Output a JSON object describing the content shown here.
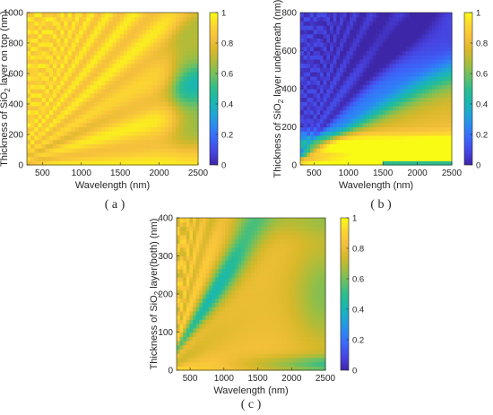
{
  "figure": {
    "colorscale": [
      "#3e26a8",
      "#4743e0",
      "#3c64f8",
      "#2d86f5",
      "#1fa6d5",
      "#19b7b0",
      "#2ebd8c",
      "#6ac064",
      "#a6bd3d",
      "#d8b82a",
      "#f6c13c",
      "#fcd631",
      "#f9fb15"
    ]
  },
  "chart_data": [
    {
      "type": "heatmap",
      "panel_label": "( a )",
      "xlabel": "Wavelength (nm)",
      "ylabel": {
        "prefix": "Thickness of SiO",
        "sub": "2",
        "suffix": " layer on top (nm)"
      },
      "xlim": [
        300,
        2500
      ],
      "ylim": [
        0,
        1000
      ],
      "xticks": [
        500,
        1000,
        1500,
        2000,
        2500
      ],
      "yticks": [
        0,
        200,
        400,
        600,
        800,
        1000
      ],
      "colorbar": {
        "range": [
          0,
          1
        ],
        "ticks": [
          "0",
          "0.2",
          "0.4",
          "0.6",
          "0.8",
          "1"
        ]
      },
      "z_description": "normalized value 0-1; mostly 0.8-1.0 with diagonal interference fringes, dips to ~0.55 at long wavelengths (>2100 nm) for mid thicknesses",
      "samples": [
        {
          "x": 1000,
          "y": 600,
          "z": 0.95
        },
        {
          "x": 1500,
          "y": 300,
          "z": 0.97
        },
        {
          "x": 2400,
          "y": 500,
          "z": 0.55
        },
        {
          "x": 2400,
          "y": 100,
          "z": 0.82
        },
        {
          "x": 600,
          "y": 100,
          "z": 0.9
        }
      ]
    },
    {
      "type": "heatmap",
      "panel_label": "( b )",
      "xlabel": "Wavelength (nm)",
      "ylabel": {
        "prefix": "Thickness of SiO",
        "sub": "2",
        "suffix": " layer underneath (nm)"
      },
      "xlim": [
        300,
        2500
      ],
      "ylim": [
        0,
        800
      ],
      "xticks": [
        500,
        1000,
        1500,
        2000,
        2500
      ],
      "yticks": [
        0,
        200,
        400,
        600,
        800
      ],
      "colorbar": {
        "range": [
          0,
          1
        ],
        "ticks": [
          "0",
          "0.2",
          "0.4",
          "0.6",
          "0.8",
          "1"
        ]
      },
      "z_description": "high (~1) near small thickness and in a diagonal band; drops to ~0.25 for thick layers at long wavelengths",
      "samples": [
        {
          "x": 2100,
          "y": 600,
          "z": 0.25
        },
        {
          "x": 1500,
          "y": 150,
          "z": 0.9
        },
        {
          "x": 800,
          "y": 600,
          "z": 0.95
        },
        {
          "x": 2400,
          "y": 20,
          "z": 0.5
        }
      ]
    },
    {
      "type": "heatmap",
      "panel_label": "( c )",
      "xlabel": "Wavelength (nm)",
      "ylabel": {
        "prefix": "Thickness of SiO",
        "sub": "2",
        "suffix": " layer(both) (nm)"
      },
      "xlim": [
        300,
        2500
      ],
      "ylim": [
        0,
        400
      ],
      "xticks": [
        500,
        1000,
        1500,
        2000,
        2500
      ],
      "yticks": [
        0,
        100,
        200,
        300,
        400
      ],
      "colorbar": {
        "range": [
          0,
          1
        ],
        "ticks": [
          "0",
          "0.2",
          "0.4",
          "0.6",
          "0.8",
          "1"
        ]
      },
      "z_description": "diagonal fringes at short wavelengths, blue trough upper-left (~0.35), broad orange plateau (~0.85) at center-right, teal (~0.55) at bottom-right",
      "samples": [
        {
          "x": 1000,
          "y": 330,
          "z": 0.35
        },
        {
          "x": 1800,
          "y": 220,
          "z": 0.85
        },
        {
          "x": 2300,
          "y": 20,
          "z": 0.55
        },
        {
          "x": 2300,
          "y": 370,
          "z": 0.55
        }
      ]
    }
  ]
}
